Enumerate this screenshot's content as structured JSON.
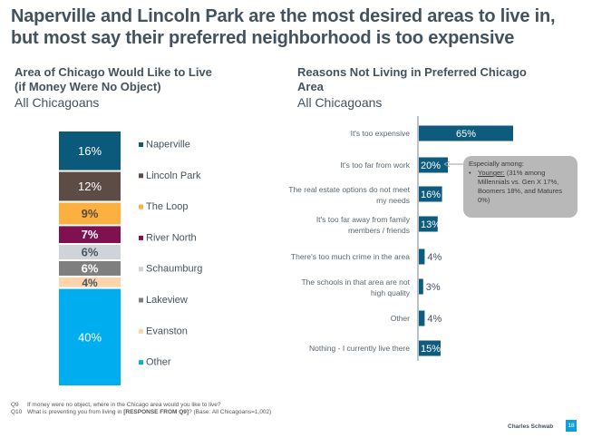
{
  "header": {
    "title_line1": "Naperville and Lincoln Park are the most desired areas to live in,",
    "title_line2": "but most say their preferred neighborhood is too expensive"
  },
  "left_panel": {
    "title_line1": "Area of Chicago Would Like to Live",
    "title_line2": "(if Money Were No Object)",
    "subtitle": "All Chicagoans"
  },
  "right_panel": {
    "title_line1": "Reasons Not Living in Preferred Chicago",
    "title_line2": "Area",
    "subtitle": "All Chicagoans"
  },
  "callout": {
    "heading": "Especially among:",
    "bullet": "•",
    "underlined": "Younger:",
    "text": " (31% among Millennials vs. Gen X 17%, Boomers 18%, and Matures 0%)"
  },
  "footer": {
    "q9_label": "Q9",
    "q9_text": "If money were no object, where in the Chicago area would you like to live?",
    "q10_label": "Q10",
    "q10_text_a": "What is preventing you from living in ",
    "q10_bold": "[RESPONSE FROM Q9]",
    "q10_text_b": "?  (Base: All Chicagoans=1,002)",
    "brand": "Charles Schwab",
    "page_number": "18"
  },
  "chart_data": [
    {
      "type": "bar",
      "subtype": "stacked-100",
      "title": "Area of Chicago Would Like to Live (if Money Were No Object)",
      "subtitle": "All Chicagoans",
      "unit": "%",
      "legend_position": "right",
      "series": [
        {
          "name": "Naperville",
          "value": 16,
          "color": "#0b5a7c",
          "label_color": "#ffffff"
        },
        {
          "name": "Lincoln Park",
          "value": 12,
          "color": "#5d4c45",
          "label_color": "#ffffff"
        },
        {
          "name": "The Loop",
          "value": 9,
          "color": "#fbb040",
          "label_color": "#5a4a3a"
        },
        {
          "name": "River North",
          "value": 7,
          "color": "#7f1150",
          "label_color": "#ffffff"
        },
        {
          "name": "Schaumburg",
          "value": 6,
          "color": "#cfd4da",
          "label_color": "#4a5560"
        },
        {
          "name": "Lakeview",
          "value": 6,
          "color": "#7f7f7f",
          "label_color": "#ffffff"
        },
        {
          "name": "Evanston",
          "value": 4,
          "color": "#fdd5ad",
          "label_color": "#4a5560"
        },
        {
          "name": "Other",
          "value": 40,
          "color": "#00aeef",
          "label_color": "#ffffff"
        }
      ]
    },
    {
      "type": "bar",
      "orientation": "horizontal",
      "title": "Reasons Not Living in Preferred Chicago Area",
      "subtitle": "All Chicagoans",
      "unit": "%",
      "color": "#0f5b7e",
      "xlim": [
        0,
        100
      ],
      "categories": [
        [
          "It's too expensive"
        ],
        [
          "It's too far from work"
        ],
        [
          "The real estate options do not meet",
          "my needs"
        ],
        [
          "It's too far away from family",
          "members / friends"
        ],
        [
          "There's too much crime in the area"
        ],
        [
          "The schools in that area are not",
          "high quality"
        ],
        [
          "Other"
        ],
        [
          "Nothing - I currently live there"
        ]
      ],
      "values": [
        65,
        20,
        16,
        13,
        4,
        3,
        4,
        15
      ],
      "data_labels": [
        "65%",
        "20%",
        "16%",
        "13%",
        "4%",
        "3%",
        "4%",
        "15%"
      ]
    }
  ]
}
